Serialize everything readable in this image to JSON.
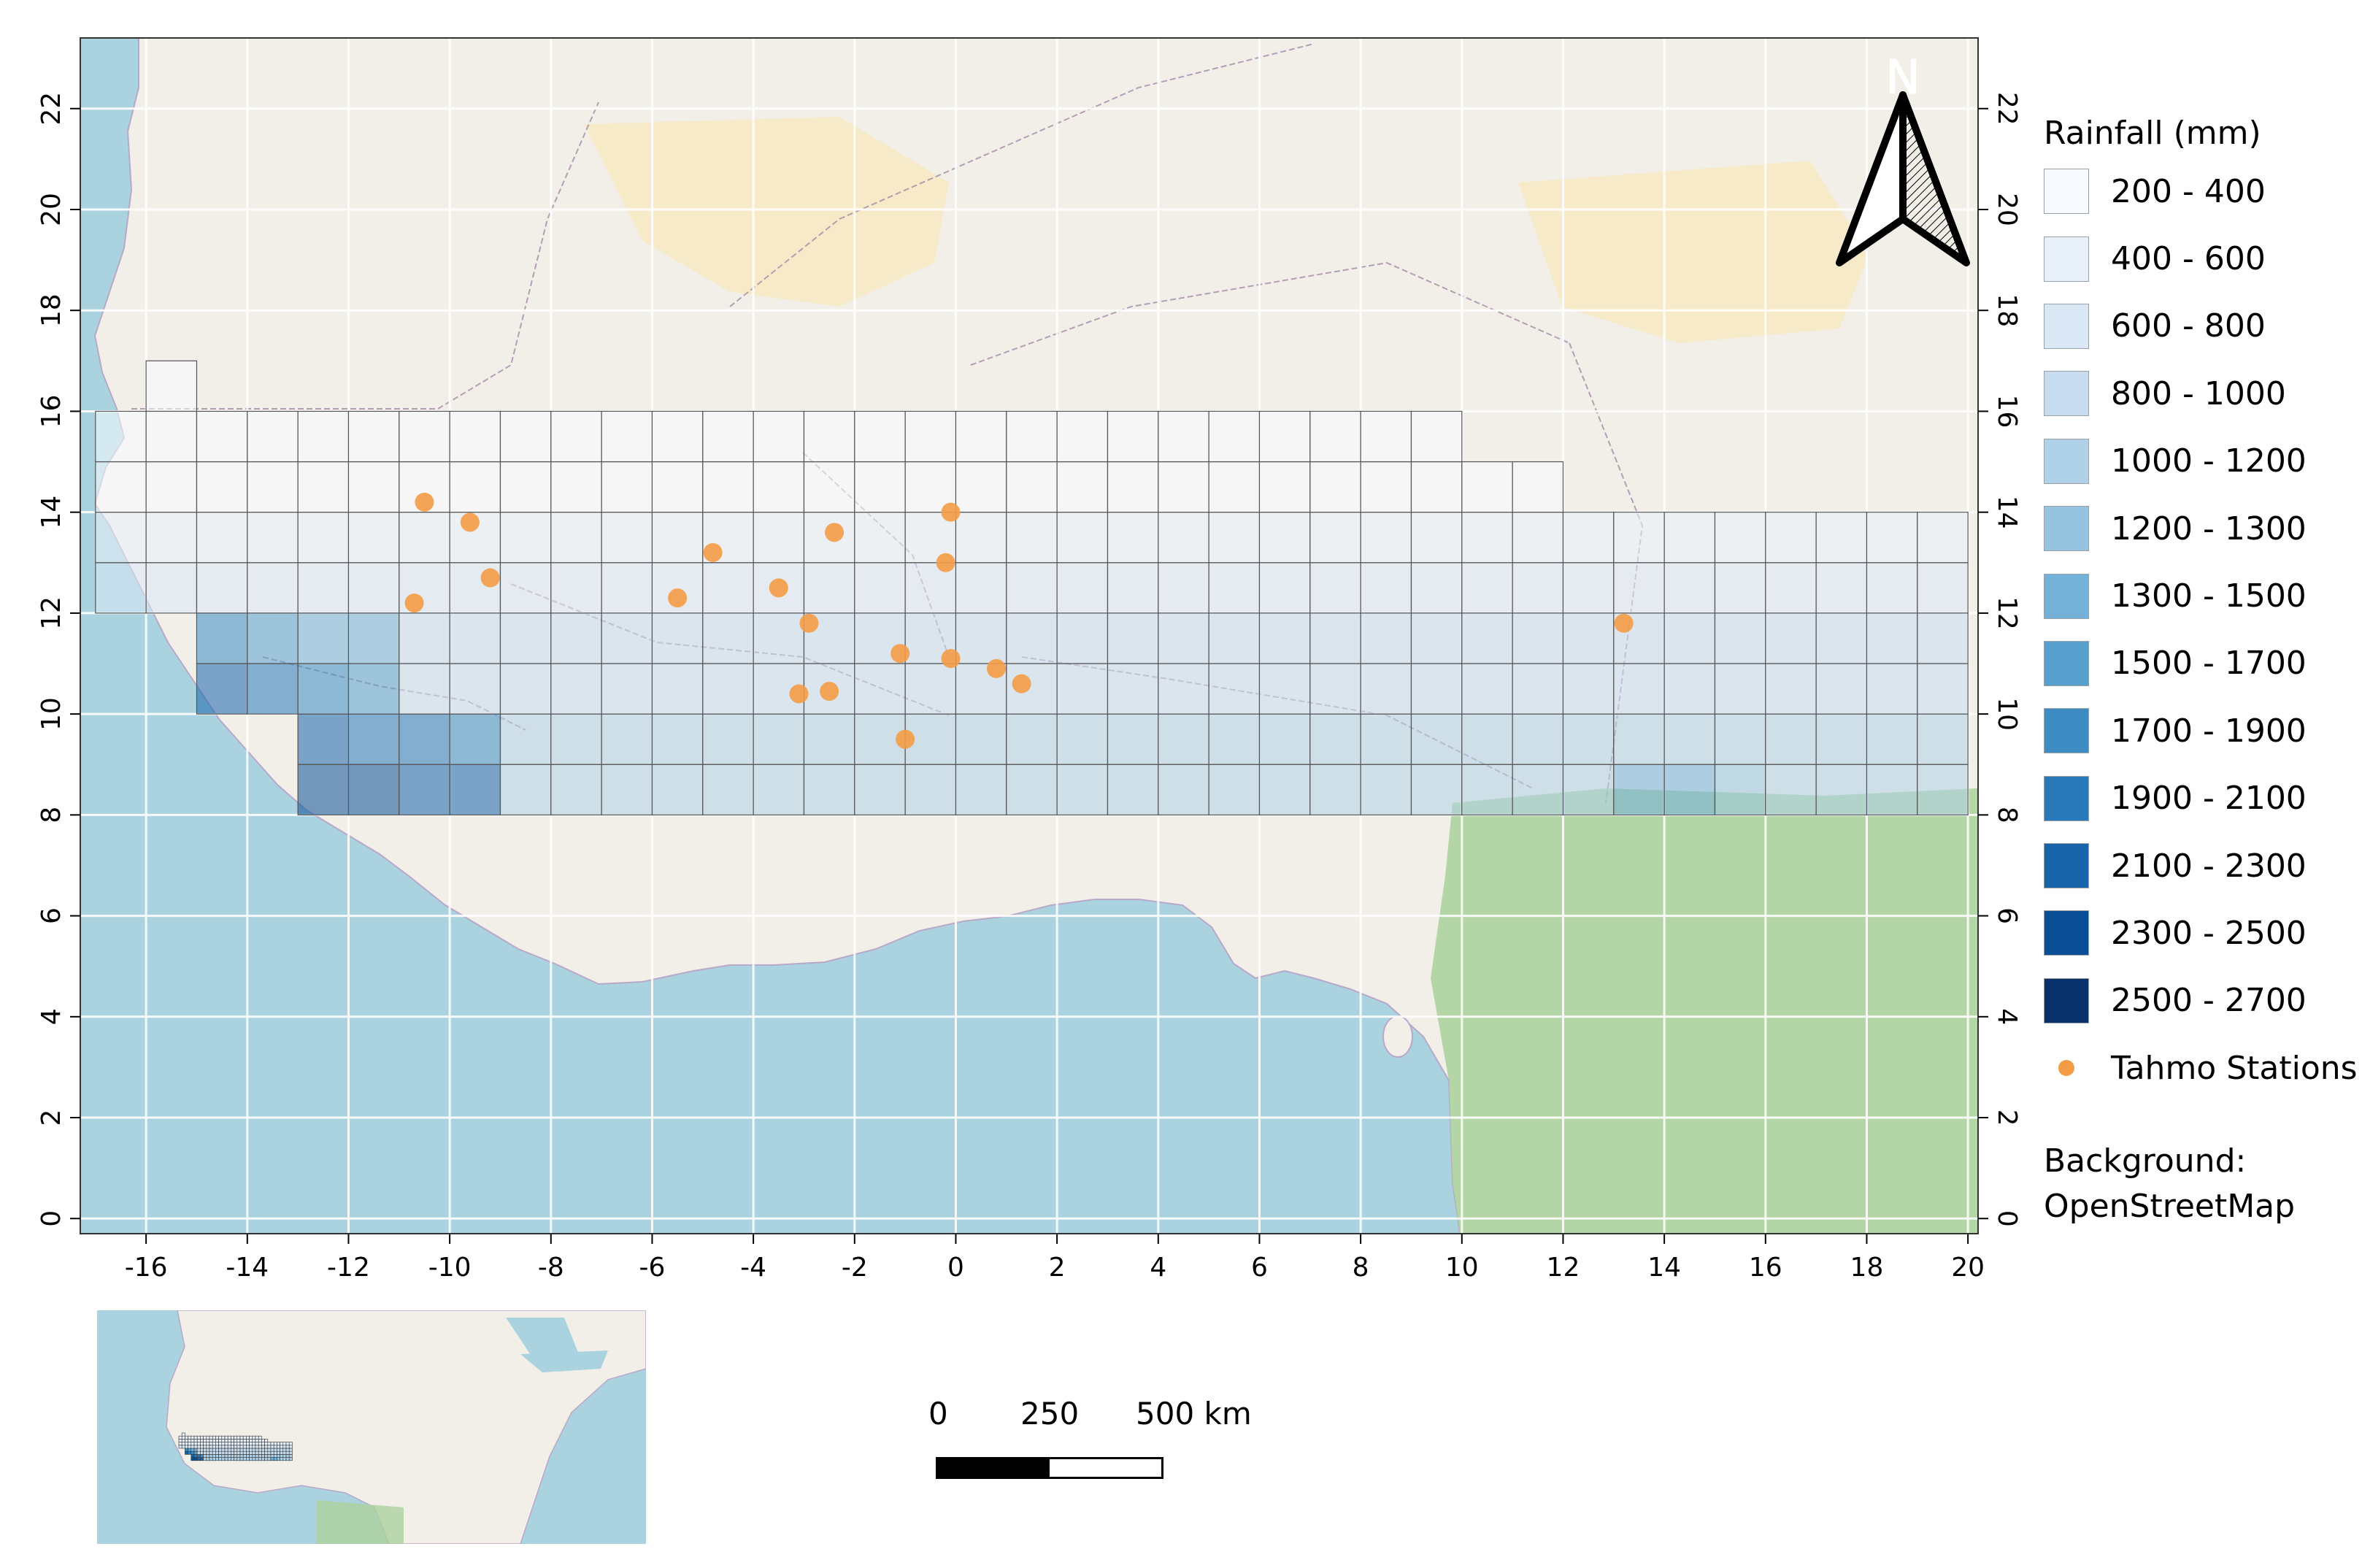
{
  "map": {
    "x_ticks": [
      "-16",
      "-14",
      "-12",
      "-10",
      "-8",
      "-6",
      "-4",
      "-2",
      "0",
      "2",
      "4",
      "6",
      "8",
      "10",
      "12",
      "14",
      "16",
      "18",
      "20"
    ],
    "y_ticks": [
      "0",
      "2",
      "4",
      "6",
      "8",
      "10",
      "12",
      "14",
      "16",
      "18",
      "20",
      "22"
    ],
    "extent": {
      "lon_min": -17.3,
      "lon_max": 20.2,
      "lat_min": -0.3,
      "lat_max": 23.4
    },
    "colors": {
      "sea": "#aad3df",
      "land": "#f2efe9",
      "desert": "#f7e8c0",
      "forest": "#add19e",
      "station": "#f49b45",
      "grid_stroke": "#555555"
    },
    "grid_cells_from": {
      "lat": 8,
      "lon": -17
    },
    "grid_rows": [
      {
        "lat_min": 8,
        "lat_max": 9,
        "lon_min": -13,
        "lon_max": 20
      },
      {
        "lat_min": 9,
        "lat_max": 10,
        "lon_min": -13,
        "lon_max": 20
      },
      {
        "lat_min": 10,
        "lat_max": 11,
        "lon_min": -15,
        "lon_max": 20
      },
      {
        "lat_min": 11,
        "lat_max": 12,
        "lon_min": -15,
        "lon_max": 20
      },
      {
        "lat_min": 12,
        "lat_max": 13,
        "lon_min": -17,
        "lon_max": 20
      },
      {
        "lat_min": 13,
        "lat_max": 14,
        "lon_min": -17,
        "lon_max": 20
      },
      {
        "lat_min": 14,
        "lat_max": 15,
        "lon_min": -17,
        "lon_max": 12
      },
      {
        "lat_min": 15,
        "lat_max": 16,
        "lon_min": -17,
        "lon_max": 10
      },
      {
        "lat_min": 16,
        "lat_max": 17,
        "lon_min": -16,
        "lon_max": -15
      }
    ],
    "dark_cells": [
      {
        "lon": -13,
        "lat": 8,
        "class": 12
      },
      {
        "lon": -12,
        "lat": 8,
        "class": 12
      },
      {
        "lon": -11,
        "lat": 8,
        "class": 11
      },
      {
        "lon": -10,
        "lat": 8,
        "class": 11
      },
      {
        "lon": -13,
        "lat": 9,
        "class": 11
      },
      {
        "lon": -12,
        "lat": 9,
        "class": 10
      },
      {
        "lon": -11,
        "lat": 9,
        "class": 10
      },
      {
        "lon": -10,
        "lat": 9,
        "class": 9
      },
      {
        "lon": -15,
        "lat": 10,
        "class": 11
      },
      {
        "lon": -14,
        "lat": 10,
        "class": 10
      },
      {
        "lon": -13,
        "lat": 10,
        "class": 9
      },
      {
        "lon": -12,
        "lat": 10,
        "class": 8
      },
      {
        "lon": -15,
        "lat": 11,
        "class": 9
      },
      {
        "lon": -14,
        "lat": 11,
        "class": 8
      },
      {
        "lon": -13,
        "lat": 11,
        "class": 7
      },
      {
        "lon": -12,
        "lat": 11,
        "class": 7
      },
      {
        "lon": 13,
        "lat": 8,
        "class": 7
      },
      {
        "lon": 14,
        "lat": 8,
        "class": 7
      },
      {
        "lon": 15,
        "lat": 8,
        "class": 6
      }
    ],
    "stations": [
      {
        "lon": -10.5,
        "lat": 14.2
      },
      {
        "lon": -9.6,
        "lat": 13.8
      },
      {
        "lon": -9.2,
        "lat": 12.7
      },
      {
        "lon": -10.7,
        "lat": 12.2
      },
      {
        "lon": -4.8,
        "lat": 13.2
      },
      {
        "lon": -5.5,
        "lat": 12.3
      },
      {
        "lon": -3.5,
        "lat": 12.5
      },
      {
        "lon": -2.4,
        "lat": 13.6
      },
      {
        "lon": -0.1,
        "lat": 14.0
      },
      {
        "lon": -0.2,
        "lat": 13.0
      },
      {
        "lon": -2.9,
        "lat": 11.8
      },
      {
        "lon": -1.1,
        "lat": 11.2
      },
      {
        "lon": -0.1,
        "lat": 11.1
      },
      {
        "lon": 0.8,
        "lat": 10.9
      },
      {
        "lon": 1.3,
        "lat": 10.6
      },
      {
        "lon": -3.1,
        "lat": 10.4
      },
      {
        "lon": -2.5,
        "lat": 10.45
      },
      {
        "lon": -1.0,
        "lat": 9.5
      },
      {
        "lon": 13.2,
        "lat": 11.8
      }
    ]
  },
  "north_arrow": {
    "label": "N"
  },
  "legend": {
    "title": "Rainfall (mm)",
    "classes": [
      {
        "label": "200 - 400",
        "color": "#f7fbff"
      },
      {
        "label": "400 - 600",
        "color": "#e8f1fa"
      },
      {
        "label": "600 - 800",
        "color": "#dae8f6"
      },
      {
        "label": "800 - 1000",
        "color": "#c8dcf0"
      },
      {
        "label": "1000 - 1200",
        "color": "#b0d2e8"
      },
      {
        "label": "1200 - 1300",
        "color": "#96c4e0"
      },
      {
        "label": "1300 - 1500",
        "color": "#74b1d8"
      },
      {
        "label": "1500 - 1700",
        "color": "#57a0ce"
      },
      {
        "label": "1700 - 1900",
        "color": "#3d8dc4"
      },
      {
        "label": "1900 - 2100",
        "color": "#2879b9"
      },
      {
        "label": "2100 - 2300",
        "color": "#1764ab"
      },
      {
        "label": "2300 - 2500",
        "color": "#0a4f95"
      },
      {
        "label": "2500 - 2700",
        "color": "#08306b"
      }
    ],
    "stations_label": "Tahmo Stations"
  },
  "credit": {
    "line1": "Background:",
    "line2": "OpenStreetMap"
  },
  "scalebar": {
    "label_0": "0",
    "label_mid": "250",
    "label_end": "500 km"
  }
}
